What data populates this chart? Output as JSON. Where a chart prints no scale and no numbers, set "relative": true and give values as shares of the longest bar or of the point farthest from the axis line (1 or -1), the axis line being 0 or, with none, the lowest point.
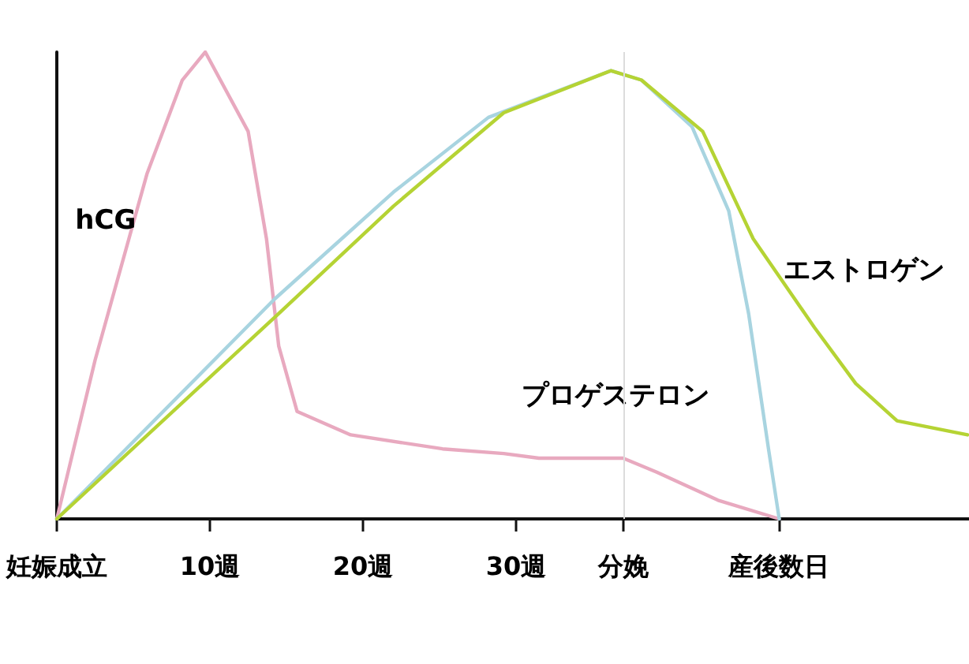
{
  "chart_data": {
    "type": "line",
    "relative": true,
    "marker": "none",
    "line_style": "solid",
    "grid": false,
    "legend": false,
    "xlim": [
      0,
      59.6
    ],
    "xticks": [
      {
        "value": 0,
        "label": "妊娠成立"
      },
      {
        "value": 10,
        "label": "10週"
      },
      {
        "value": 20,
        "label": "20週"
      },
      {
        "value": 30,
        "label": "30週"
      },
      {
        "value": 37,
        "label": "分娩"
      },
      {
        "value": 47.2,
        "label": "産後数日"
      }
    ],
    "ref_lines": [
      {
        "axis": "x",
        "value": 37,
        "color": "#dcdcdc"
      }
    ],
    "series": [
      {
        "name": "hCG",
        "color": "#e8a9bf",
        "x": [
          0,
          2.5,
          5.9,
          8.2,
          9.7,
          12.5,
          13.7,
          14.5,
          15.7,
          19.2,
          25.2,
          29.2,
          31.5,
          37,
          39.2,
          43.2,
          47.2
        ],
        "values": [
          0,
          0.34,
          0.74,
          0.94,
          1,
          0.83,
          0.6,
          0.37,
          0.23,
          0.18,
          0.15,
          0.14,
          0.13,
          0.13,
          0.1,
          0.04,
          0
        ]
      },
      {
        "name": "プロゲステロン",
        "color": "#a8d4e0",
        "x": [
          0,
          14.2,
          22,
          28.2,
          36.2,
          38.2,
          41.5,
          43.9,
          45.2,
          46.5,
          47.2
        ],
        "values": [
          0,
          0.47,
          0.7,
          0.86,
          0.96,
          0.94,
          0.84,
          0.66,
          0.44,
          0.15,
          0
        ]
      },
      {
        "name": "エストロゲン",
        "color": "#b5d334",
        "x": [
          0,
          14.5,
          22,
          29.2,
          36.2,
          38.2,
          42.2,
          45.5,
          49.5,
          52.2,
          54.9,
          59.5
        ],
        "values": [
          0,
          0.44,
          0.67,
          0.87,
          0.96,
          0.94,
          0.83,
          0.6,
          0.41,
          0.29,
          0.21,
          0.18
        ]
      }
    ]
  }
}
